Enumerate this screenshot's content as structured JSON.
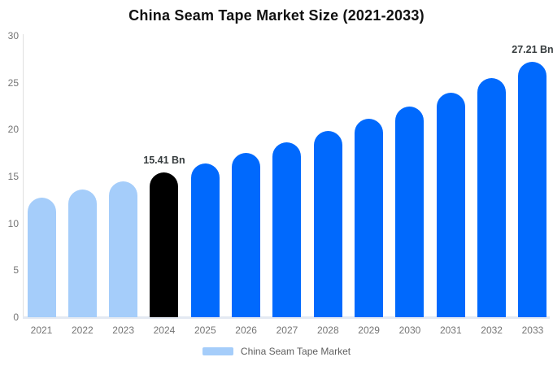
{
  "title": "China Seam Tape Market Size (2021-2033)",
  "legend": {
    "label": "China Seam Tape Market",
    "swatch_color": "#a5cdfa"
  },
  "colors": {
    "series_light_blue": "#a5cdfa",
    "series_blue": "#0069fd",
    "highlight_black": "#000000",
    "axis_line": "#e0e0e0",
    "axis_label": "#757575",
    "value_label": "#373d3f",
    "title": "#111111"
  },
  "chart_data": {
    "type": "bar",
    "title": "China Seam Tape Market Size (2021-2033)",
    "xlabel": "",
    "ylabel": "",
    "unit": "Bn",
    "categories": [
      "2021",
      "2022",
      "2023",
      "2024",
      "2025",
      "2026",
      "2027",
      "2028",
      "2029",
      "2030",
      "2031",
      "2032",
      "2033"
    ],
    "values": [
      12.75,
      13.58,
      14.47,
      15.41,
      16.41,
      17.48,
      18.62,
      19.83,
      21.12,
      22.5,
      23.96,
      25.53,
      27.21
    ],
    "bar_colors": [
      "#a5cdfa",
      "#a5cdfa",
      "#a5cdfa",
      "#000000",
      "#0069fd",
      "#0069fd",
      "#0069fd",
      "#0069fd",
      "#0069fd",
      "#0069fd",
      "#0069fd",
      "#0069fd",
      "#0069fd"
    ],
    "ylim": [
      0,
      30
    ],
    "yticks": [
      0,
      5,
      10,
      15,
      20,
      25,
      30
    ],
    "grid": false,
    "legend_position": "bottom",
    "legend_entries": [
      "China Seam Tape Market"
    ],
    "annotations": [
      {
        "category": "2024",
        "label": "15.41 Bn"
      },
      {
        "category": "2033",
        "label": "27.21 Bn"
      }
    ]
  }
}
